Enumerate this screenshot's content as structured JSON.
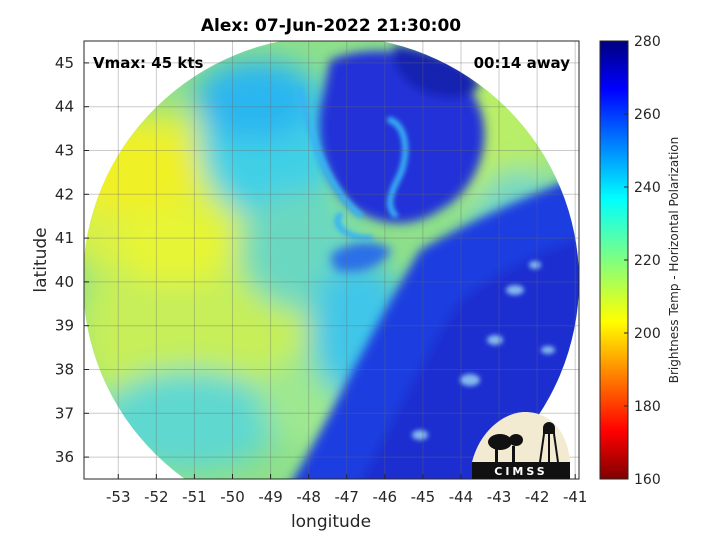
{
  "chart_data": {
    "type": "heatmap",
    "title": "Alex: 07-Jun-2022 21:30:00",
    "xlabel": "longitude",
    "ylabel": "latitude",
    "xlim": [
      -53.9,
      -40.9
    ],
    "ylim": [
      35.5,
      45.5
    ],
    "x_ticks": [
      -53,
      -52,
      -51,
      -50,
      -49,
      -48,
      -47,
      -46,
      -45,
      -44,
      -43,
      -42,
      -41
    ],
    "y_ticks": [
      36,
      37,
      38,
      39,
      40,
      41,
      42,
      43,
      44,
      45
    ],
    "grid": true,
    "colorbar": {
      "label": "Brightness Temp - Horizontal Polarization",
      "range": [
        160,
        280
      ],
      "ticks": [
        160,
        180,
        200,
        220,
        240,
        260,
        280
      ],
      "colormap": "jet"
    },
    "annotations": {
      "vmax": "Vmax: 45 kts",
      "time_away": "00:14 away"
    },
    "swath": {
      "center_lon": -47.35,
      "center_lat": 40.4,
      "background_value": 222,
      "features": [
        {
          "name": "warm-west",
          "lon": -52.2,
          "lat": 41.0,
          "value": 210
        },
        {
          "name": "warm-southwest",
          "lon": -51.0,
          "lat": 38.5,
          "value": 213
        },
        {
          "name": "cold-core",
          "lon": -45.7,
          "lat": 42.5,
          "value": 262
        },
        {
          "name": "cold-northeast",
          "lon": -44.5,
          "lat": 44.0,
          "value": 258
        },
        {
          "name": "cold-band-southeast",
          "lon": -43.0,
          "lat": 38.5,
          "value": 262
        }
      ]
    }
  },
  "logo": {
    "text": "CIMSS",
    "bg_color": "#f3ead2",
    "fg_color": "#111111"
  },
  "colors": {
    "jet_low": "#800000",
    "jet_mid": "#ffff00",
    "jet_high": "#000080"
  }
}
